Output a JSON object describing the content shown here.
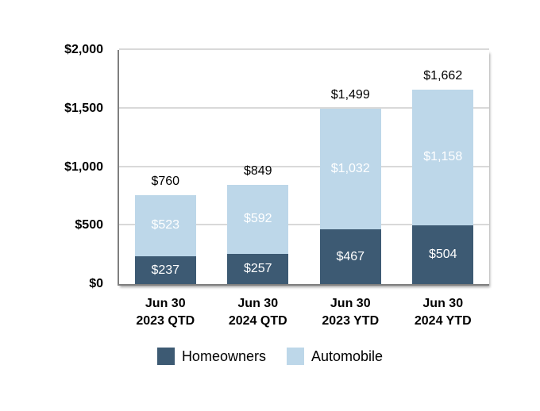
{
  "chart_data": {
    "type": "bar",
    "stacked": true,
    "title": "",
    "xlabel": "",
    "ylabel": "",
    "grid": true,
    "legend_position": "bottom",
    "categories": [
      "Jun 30\n2023 QTD",
      "Jun 30\n2024 QTD",
      "Jun 30\n2023 YTD",
      "Jun 30\n2024 YTD"
    ],
    "series": [
      {
        "name": "Homeowners",
        "color": "#3d5a73",
        "values": [
          237,
          257,
          467,
          504
        ],
        "value_labels": [
          "$237",
          "$257",
          "$467",
          "$504"
        ]
      },
      {
        "name": "Automobile",
        "color": "#bdd7e9",
        "values": [
          523,
          592,
          1032,
          1158
        ],
        "value_labels": [
          "$523",
          "$592",
          "$1,032",
          "$1,158"
        ]
      }
    ],
    "totals": [
      760,
      849,
      1499,
      1662
    ],
    "total_labels": [
      "$760",
      "$849",
      "$1,499",
      "$1,662"
    ],
    "y_axis": {
      "min": 0,
      "max": 2000,
      "ticks": [
        0,
        500,
        1000,
        1500,
        2000
      ],
      "tick_labels": [
        "$0",
        "$500",
        "$1,000",
        "$1,500",
        "$2,000"
      ]
    },
    "colors": {
      "axis_line": "#7f7f7f",
      "gridline": "#d9d9d9",
      "segment_label_text": "#ffffff",
      "label_text": "#000000",
      "background": "#ffffff"
    }
  }
}
